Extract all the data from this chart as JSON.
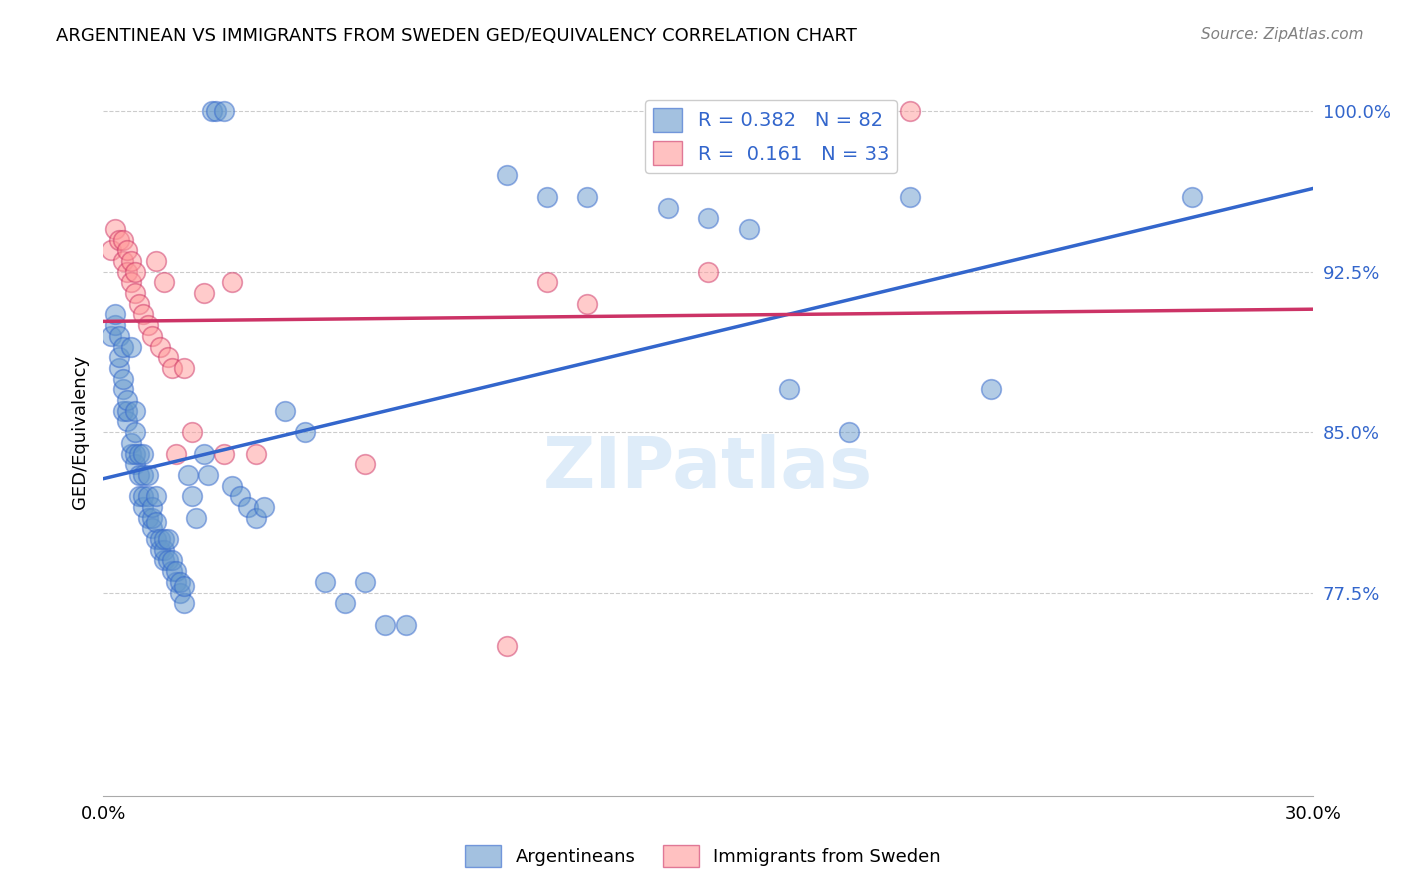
{
  "title": "ARGENTINEAN VS IMMIGRANTS FROM SWEDEN GED/EQUIVALENCY CORRELATION CHART",
  "source_text": "Source: ZipAtlas.com",
  "ylabel": "GED/Equivalency",
  "xlabel": "",
  "blue_label": "Argentineans",
  "pink_label": "Immigrants from Sweden",
  "blue_R": 0.382,
  "blue_N": 82,
  "pink_R": 0.161,
  "pink_N": 33,
  "xlim": [
    0.0,
    0.3
  ],
  "ylim": [
    0.68,
    1.02
  ],
  "yticks": [
    0.775,
    0.85,
    0.925,
    1.0
  ],
  "ytick_labels": [
    "77.5%",
    "85.0%",
    "92.5%",
    "100.0%"
  ],
  "xticks": [
    0.0,
    0.05,
    0.1,
    0.15,
    0.2,
    0.25,
    0.3
  ],
  "xtick_labels": [
    "0.0%",
    "",
    "",
    "",
    "",
    "",
    "30.0%"
  ],
  "blue_color": "#6699CC",
  "pink_color": "#FF9999",
  "blue_line_color": "#3366CC",
  "pink_line_color": "#CC3366",
  "background_color": "#FFFFFF",
  "grid_color": "#CCCCCC",
  "watermark_text": "ZIPatlas",
  "blue_x": [
    0.002,
    0.003,
    0.003,
    0.004,
    0.004,
    0.004,
    0.005,
    0.005,
    0.005,
    0.005,
    0.006,
    0.006,
    0.006,
    0.007,
    0.007,
    0.007,
    0.008,
    0.008,
    0.008,
    0.008,
    0.009,
    0.009,
    0.009,
    0.01,
    0.01,
    0.01,
    0.01,
    0.011,
    0.011,
    0.011,
    0.012,
    0.012,
    0.012,
    0.013,
    0.013,
    0.013,
    0.014,
    0.014,
    0.015,
    0.015,
    0.015,
    0.016,
    0.016,
    0.017,
    0.017,
    0.018,
    0.018,
    0.019,
    0.019,
    0.02,
    0.02,
    0.021,
    0.022,
    0.023,
    0.025,
    0.026,
    0.027,
    0.028,
    0.03,
    0.032,
    0.034,
    0.036,
    0.038,
    0.04,
    0.045,
    0.05,
    0.055,
    0.06,
    0.065,
    0.07,
    0.075,
    0.1,
    0.11,
    0.12,
    0.14,
    0.15,
    0.16,
    0.17,
    0.185,
    0.2,
    0.22,
    0.27
  ],
  "blue_y": [
    0.895,
    0.9,
    0.905,
    0.88,
    0.885,
    0.895,
    0.86,
    0.87,
    0.875,
    0.89,
    0.855,
    0.86,
    0.865,
    0.84,
    0.845,
    0.89,
    0.835,
    0.84,
    0.85,
    0.86,
    0.82,
    0.83,
    0.84,
    0.815,
    0.82,
    0.83,
    0.84,
    0.81,
    0.82,
    0.83,
    0.805,
    0.81,
    0.815,
    0.8,
    0.808,
    0.82,
    0.795,
    0.8,
    0.79,
    0.795,
    0.8,
    0.79,
    0.8,
    0.785,
    0.79,
    0.78,
    0.785,
    0.775,
    0.78,
    0.77,
    0.778,
    0.83,
    0.82,
    0.81,
    0.84,
    0.83,
    1.0,
    1.0,
    1.0,
    0.825,
    0.82,
    0.815,
    0.81,
    0.815,
    0.86,
    0.85,
    0.78,
    0.77,
    0.78,
    0.76,
    0.76,
    0.97,
    0.96,
    0.96,
    0.955,
    0.95,
    0.945,
    0.87,
    0.85,
    0.96,
    0.87,
    0.96
  ],
  "pink_x": [
    0.002,
    0.003,
    0.004,
    0.005,
    0.005,
    0.006,
    0.006,
    0.007,
    0.007,
    0.008,
    0.008,
    0.009,
    0.01,
    0.011,
    0.012,
    0.013,
    0.014,
    0.015,
    0.016,
    0.017,
    0.018,
    0.02,
    0.022,
    0.025,
    0.03,
    0.032,
    0.038,
    0.065,
    0.1,
    0.11,
    0.12,
    0.15,
    0.2
  ],
  "pink_y": [
    0.935,
    0.945,
    0.94,
    0.93,
    0.94,
    0.925,
    0.935,
    0.92,
    0.93,
    0.915,
    0.925,
    0.91,
    0.905,
    0.9,
    0.895,
    0.93,
    0.89,
    0.92,
    0.885,
    0.88,
    0.84,
    0.88,
    0.85,
    0.915,
    0.84,
    0.92,
    0.84,
    0.835,
    0.75,
    0.92,
    0.91,
    0.925,
    1.0
  ]
}
